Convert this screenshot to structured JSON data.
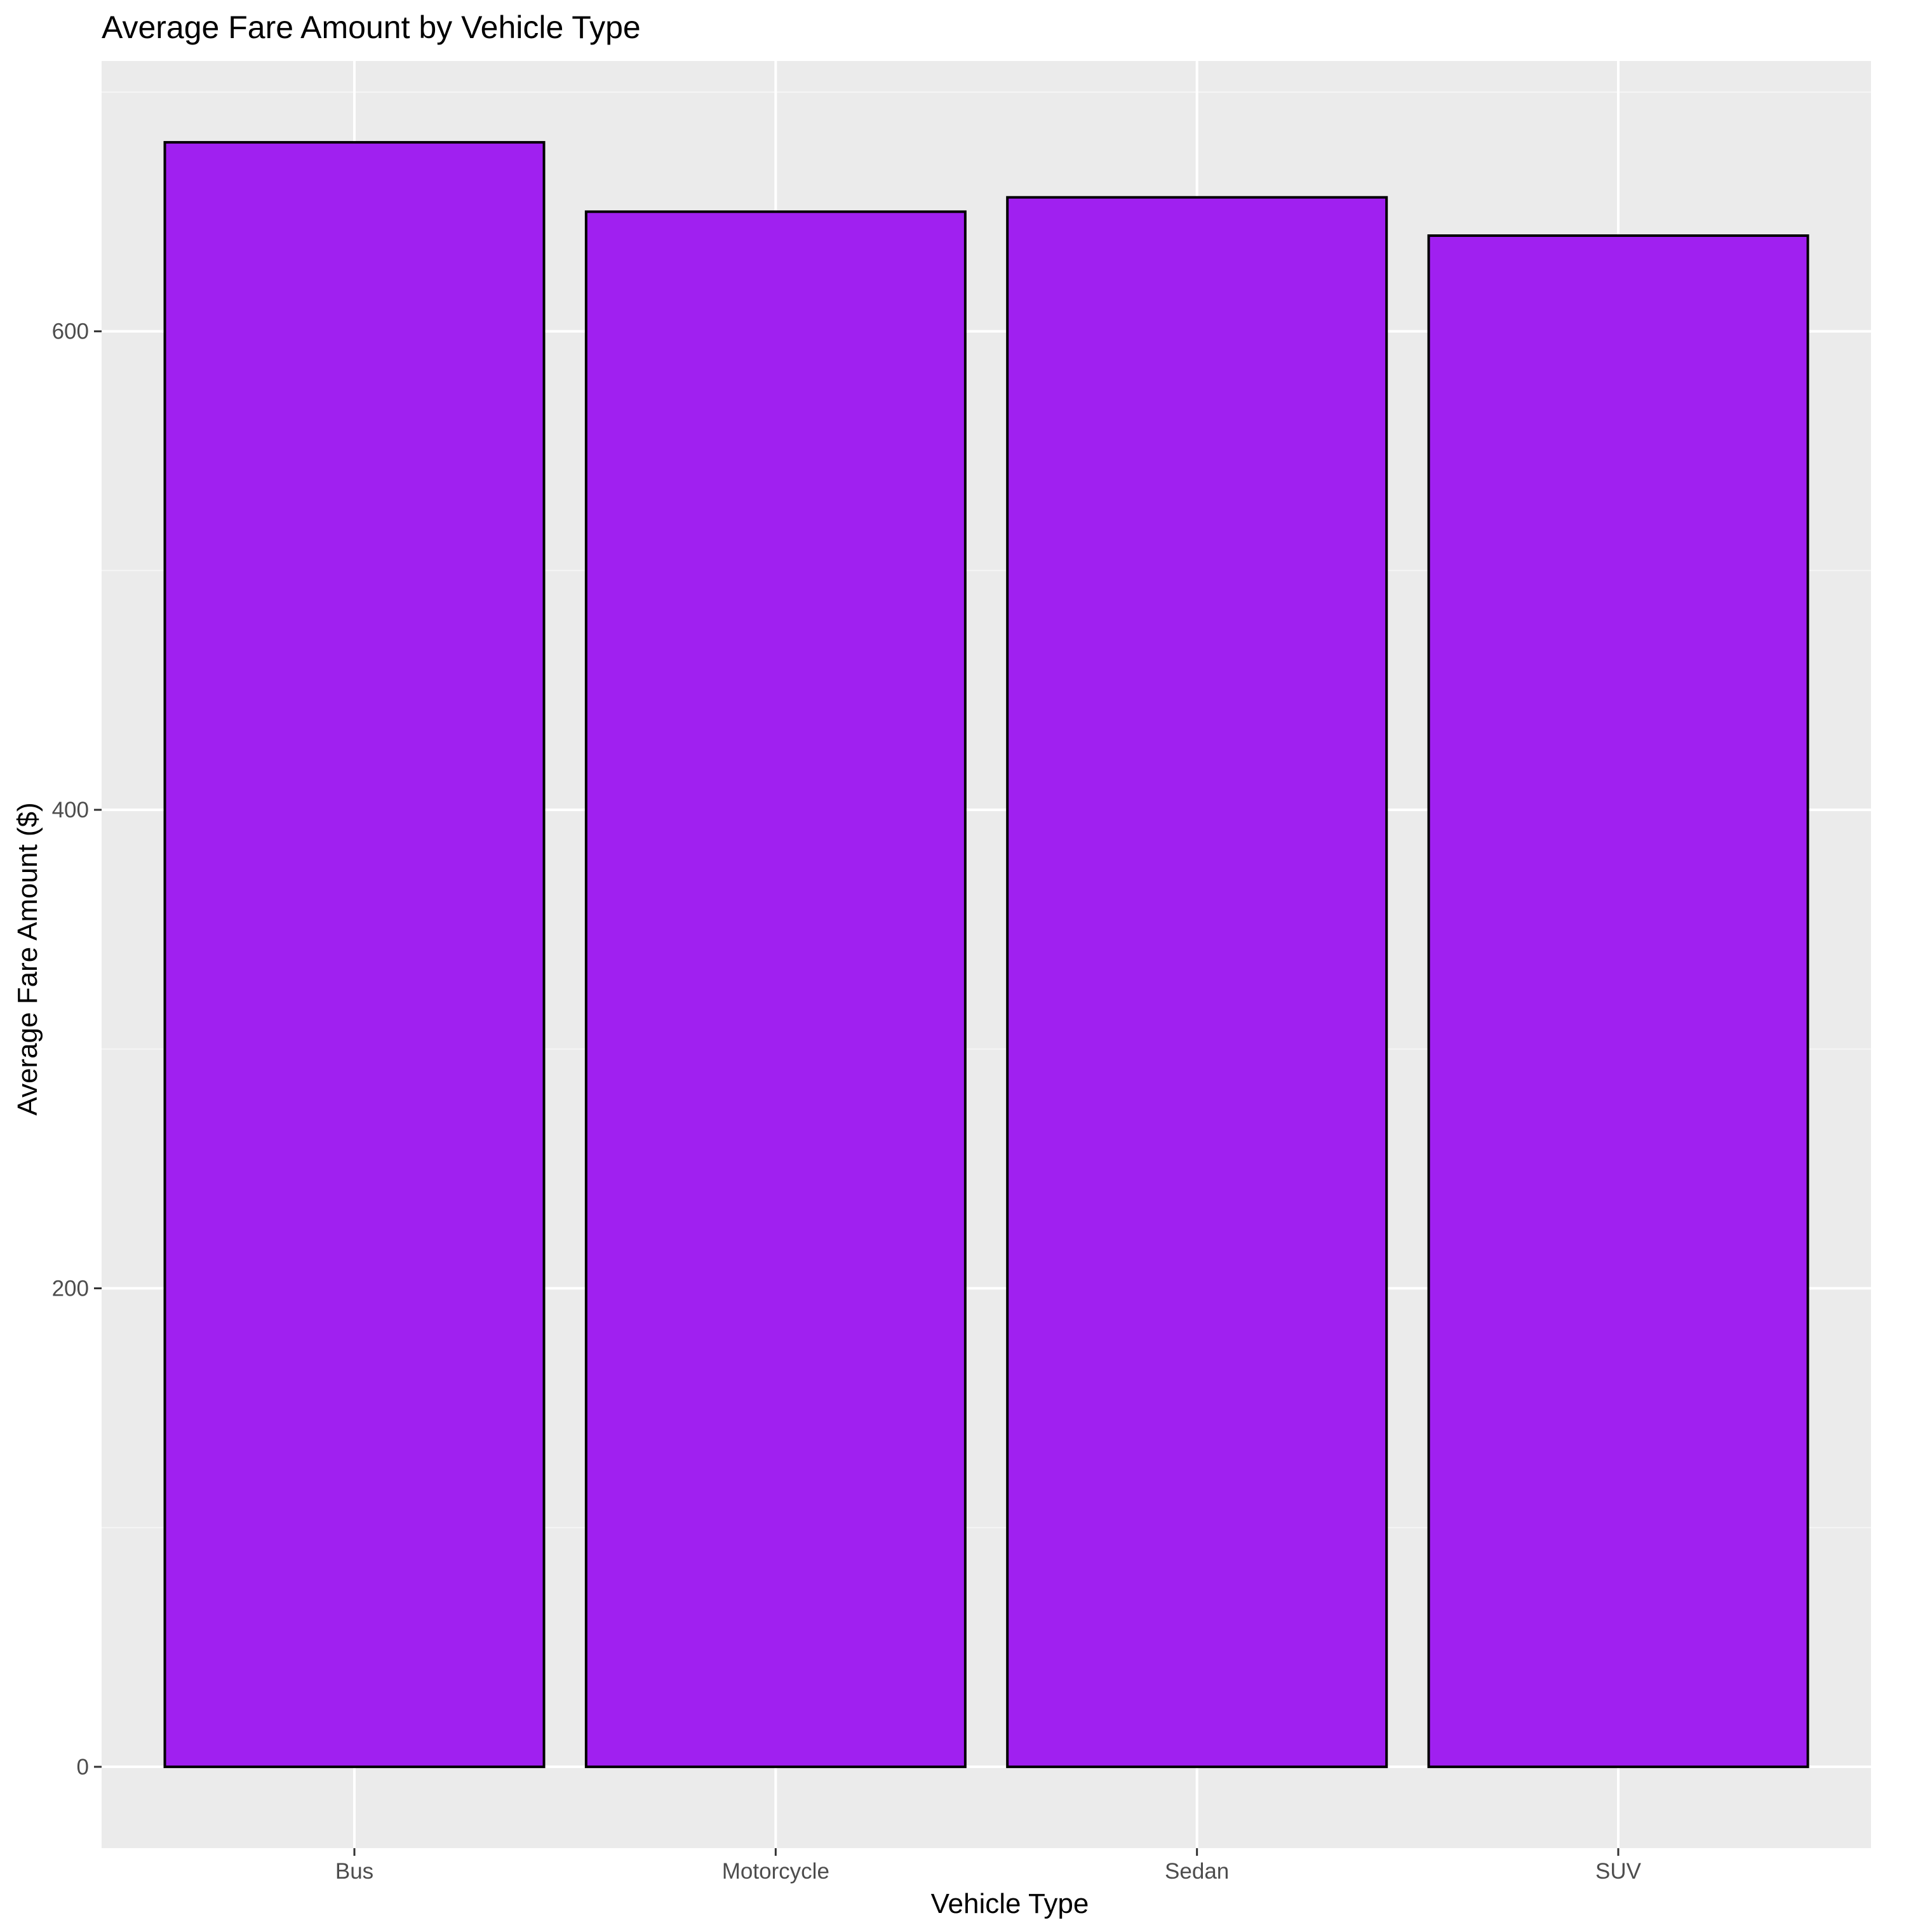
{
  "chart_data": {
    "type": "bar",
    "title": "Average Fare Amount by Vehicle Type",
    "xlabel": "Vehicle Type",
    "ylabel": "Average Fare Amount ($)",
    "categories": [
      "Bus",
      "Motorcycle",
      "Sedan",
      "SUV"
    ],
    "values": [
      679,
      650,
      656,
      640
    ],
    "ylim": [
      -34,
      713
    ],
    "yticks": [
      0,
      200,
      400,
      600
    ],
    "ytick_labels": [
      "0",
      "200",
      "400",
      "600"
    ],
    "grid": true,
    "legend": "none",
    "colors": {
      "bar_fill": "#A020F0",
      "bar_stroke": "#000000",
      "panel_background": "#EBEBEB",
      "grid_major": "#FFFFFF",
      "grid_minor": "#F5F5F5",
      "tick_label": "#4D4D4D",
      "text": "#000000"
    }
  }
}
